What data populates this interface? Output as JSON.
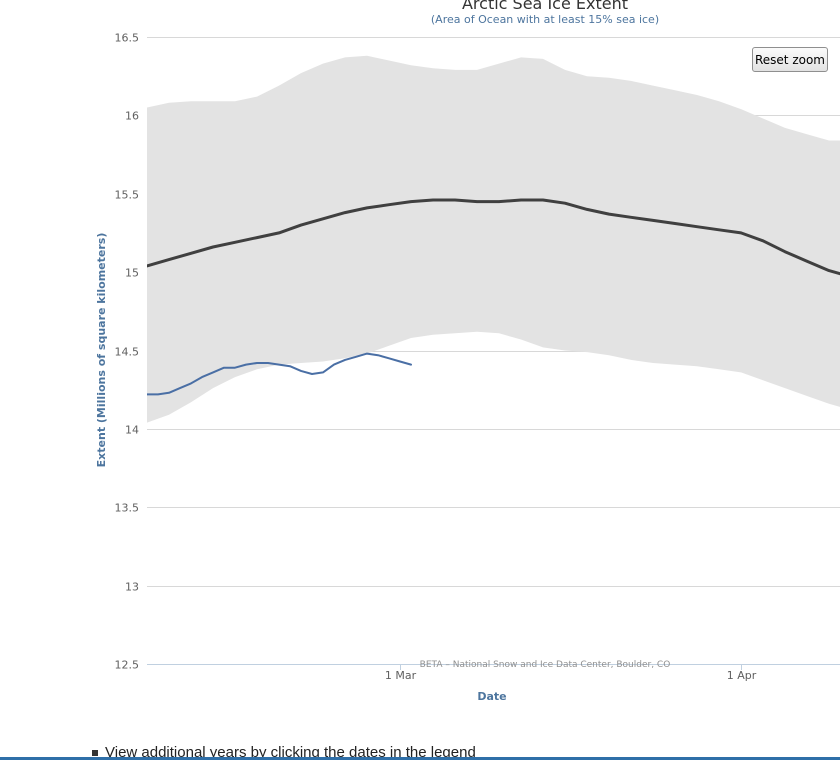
{
  "chart_data": {
    "type": "line",
    "title": "Arctic Sea Ice Extent",
    "subtitle": "(Area of Ocean with at least 15% sea ice)",
    "xlabel": "Date",
    "ylabel": "Extent (Millions of square kilometers)",
    "x_type": "datetime",
    "xlim": [
      "2016-02-07",
      "2016-04-10"
    ],
    "ylim": [
      12.5,
      16.5
    ],
    "yticks": [
      12.5,
      13,
      13.5,
      14,
      14.5,
      15,
      15.5,
      16,
      16.5
    ],
    "ytick_labels": [
      "12.5",
      "13",
      "13.5",
      "14",
      "14.5",
      "15",
      "15.5",
      "16",
      "16.5"
    ],
    "xticks": [
      "2016-03-01",
      "2016-04-01"
    ],
    "xtick_labels": [
      "1 Mar",
      "1 Apr"
    ],
    "grid": true,
    "range_band": {
      "x": [
        "2016-02-07",
        "2016-02-09",
        "2016-02-11",
        "2016-02-13",
        "2016-02-15",
        "2016-02-17",
        "2016-02-19",
        "2016-02-21",
        "2016-02-23",
        "2016-02-25",
        "2016-02-27",
        "2016-02-29",
        "2016-03-02",
        "2016-03-04",
        "2016-03-06",
        "2016-03-08",
        "2016-03-10",
        "2016-03-12",
        "2016-03-14",
        "2016-03-16",
        "2016-03-18",
        "2016-03-20",
        "2016-03-22",
        "2016-03-24",
        "2016-03-26",
        "2016-03-28",
        "2016-03-30",
        "2016-04-01",
        "2016-04-03",
        "2016-04-05",
        "2016-04-07",
        "2016-04-09",
        "2016-04-10"
      ],
      "low": [
        14.04,
        14.09,
        14.17,
        14.26,
        14.33,
        14.38,
        14.41,
        14.42,
        14.43,
        14.45,
        14.48,
        14.53,
        14.58,
        14.6,
        14.61,
        14.62,
        14.61,
        14.57,
        14.52,
        14.5,
        14.49,
        14.47,
        14.44,
        14.42,
        14.41,
        14.4,
        14.38,
        14.36,
        14.31,
        14.26,
        14.21,
        14.16,
        14.14
      ],
      "high": [
        16.05,
        16.08,
        16.09,
        16.09,
        16.09,
        16.12,
        16.19,
        16.27,
        16.33,
        16.37,
        16.38,
        16.35,
        16.32,
        16.3,
        16.29,
        16.29,
        16.33,
        16.37,
        16.36,
        16.29,
        16.25,
        16.24,
        16.22,
        16.19,
        16.16,
        16.13,
        16.09,
        16.04,
        15.98,
        15.92,
        15.88,
        15.84,
        15.84
      ]
    },
    "series": [
      {
        "color": "#404040",
        "x": [
          "2016-02-07",
          "2016-02-09",
          "2016-02-11",
          "2016-02-13",
          "2016-02-15",
          "2016-02-17",
          "2016-02-19",
          "2016-02-21",
          "2016-02-23",
          "2016-02-25",
          "2016-02-27",
          "2016-02-29",
          "2016-03-02",
          "2016-03-04",
          "2016-03-06",
          "2016-03-08",
          "2016-03-10",
          "2016-03-12",
          "2016-03-14",
          "2016-03-16",
          "2016-03-18",
          "2016-03-20",
          "2016-03-22",
          "2016-03-24",
          "2016-03-26",
          "2016-03-28",
          "2016-03-30",
          "2016-04-01",
          "2016-04-03",
          "2016-04-05",
          "2016-04-07",
          "2016-04-09",
          "2016-04-10"
        ],
        "y": [
          15.04,
          15.08,
          15.12,
          15.16,
          15.19,
          15.22,
          15.25,
          15.3,
          15.34,
          15.38,
          15.41,
          15.43,
          15.45,
          15.46,
          15.46,
          15.45,
          15.45,
          15.46,
          15.46,
          15.44,
          15.4,
          15.37,
          15.35,
          15.33,
          15.31,
          15.29,
          15.27,
          15.25,
          15.2,
          15.13,
          15.07,
          15.01,
          14.99
        ]
      },
      {
        "color": "#4a6fa5",
        "x": [
          "2016-02-07",
          "2016-02-08",
          "2016-02-09",
          "2016-02-10",
          "2016-02-11",
          "2016-02-12",
          "2016-02-13",
          "2016-02-14",
          "2016-02-15",
          "2016-02-16",
          "2016-02-17",
          "2016-02-18",
          "2016-02-19",
          "2016-02-20",
          "2016-02-21",
          "2016-02-22",
          "2016-02-23",
          "2016-02-24",
          "2016-02-25",
          "2016-02-26",
          "2016-02-27",
          "2016-02-28",
          "2016-02-29",
          "2016-03-01",
          "2016-03-02"
        ],
        "y": [
          14.22,
          14.22,
          14.23,
          14.26,
          14.29,
          14.33,
          14.36,
          14.39,
          14.39,
          14.41,
          14.42,
          14.42,
          14.41,
          14.4,
          14.37,
          14.35,
          14.36,
          14.41,
          14.44,
          14.46,
          14.48,
          14.47,
          14.45,
          14.43,
          14.41
        ]
      }
    ],
    "credits": "BETA – National Snow and Ice Data Center, Boulder, CO"
  },
  "controls": {
    "reset_zoom_label": "Reset zoom"
  },
  "footer": {
    "note": "View additional years by clicking the dates in the legend"
  },
  "colors": {
    "band": "#e3e3e3",
    "median": "#404040",
    "current": "#4a6fa5",
    "grid": "#d8d8d8",
    "axis_title": "#4d759e"
  }
}
